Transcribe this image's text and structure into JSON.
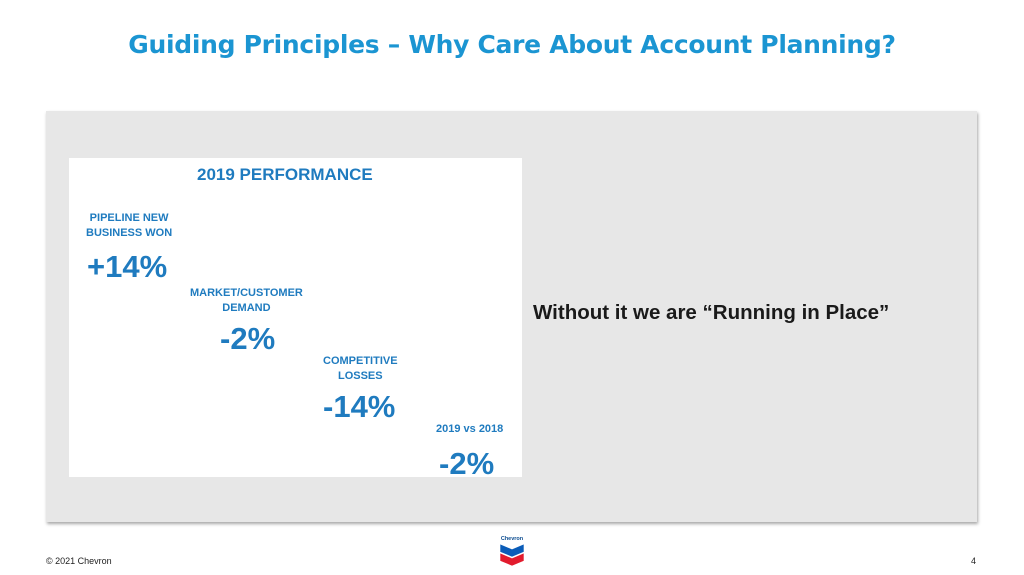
{
  "slide": {
    "title": "Guiding Principles – Why Care About Account Planning?",
    "quote": "Without it we are “Running in Place”",
    "page_number": "4",
    "copyright": "© 2021 Chevron"
  },
  "performance": {
    "title": "2019 PERFORMANCE",
    "metrics": [
      {
        "label_lines": [
          "PIPELINE NEW",
          "BUSINESS WON"
        ],
        "value": "+14%"
      },
      {
        "label_lines": [
          "MARKET/CUSTOMER",
          "DEMAND"
        ],
        "value": "-2%"
      },
      {
        "label_lines": [
          "COMPETITIVE",
          "LOSSES"
        ],
        "value": "-14%"
      },
      {
        "label_lines": [
          "2019 vs 2018"
        ],
        "value": "-2%"
      }
    ]
  },
  "logo": {
    "text": "Chevron",
    "colors": {
      "blue": "#0a5cb8",
      "red": "#e21b2d"
    }
  }
}
